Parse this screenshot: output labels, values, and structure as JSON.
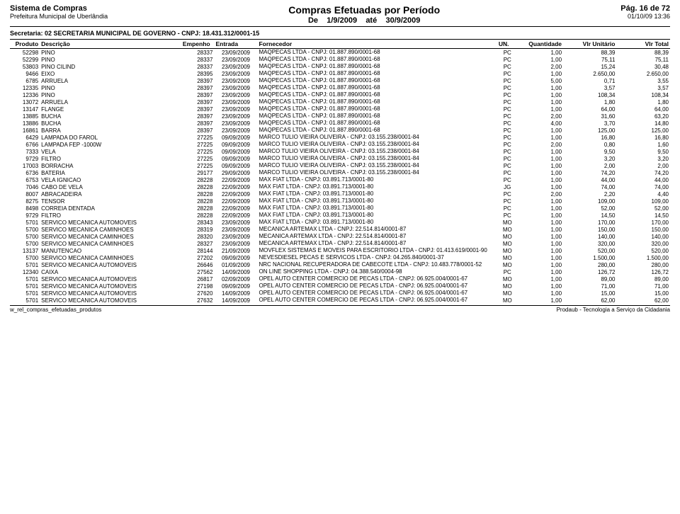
{
  "header": {
    "system_title": "Sistema de Compras",
    "system_sub": "Prefeitura Municipal de Uberlândia",
    "report_title": "Compras Efetuadas por Período",
    "report_sub_prefix": "De",
    "report_sub_date1": "1/9/2009",
    "report_sub_mid": "até",
    "report_sub_date2": "30/9/2009",
    "page_num": "Pág. 16 de 72",
    "timestamp": "01/10/09 13:36"
  },
  "secretaria": "Secretaria:  02  SECRETARIA MUNICIPAL DE GOVERNO   -   CNPJ: 18.431.312/0001-15",
  "columns": {
    "produto": "Produto",
    "descricao": "Descrição",
    "empenho": "Empenho",
    "entrada": "Entrada",
    "fornecedor": "Fornecedor",
    "un": "UN.",
    "qtd": "Quantidade",
    "unit": "Vlr Unitário",
    "total": "Vlr Total"
  },
  "rows": [
    {
      "produto": "52298",
      "descricao": "PINO",
      "empenho": "28337",
      "entrada": "23/09/2009",
      "fornecedor": "MAQPECAS LTDA  -  CNPJ: 01.887.890/0001-68",
      "un": "PC",
      "qtd": "1,00",
      "unit": "88,39",
      "total": "88,39"
    },
    {
      "produto": "52299",
      "descricao": "PINO",
      "empenho": "28337",
      "entrada": "23/09/2009",
      "fornecedor": "MAQPECAS LTDA  -  CNPJ: 01.887.890/0001-68",
      "un": "PC",
      "qtd": "1,00",
      "unit": "75,11",
      "total": "75,11"
    },
    {
      "produto": "53803",
      "descricao": "PINO CILIND",
      "empenho": "28337",
      "entrada": "23/09/2009",
      "fornecedor": "MAQPECAS LTDA  -  CNPJ: 01.887.890/0001-68",
      "un": "PC",
      "qtd": "2,00",
      "unit": "15,24",
      "total": "30,48"
    },
    {
      "produto": "9466",
      "descricao": "EIXO",
      "empenho": "28395",
      "entrada": "23/09/2009",
      "fornecedor": "MAQPECAS LTDA  -  CNPJ: 01.887.890/0001-68",
      "un": "PC",
      "qtd": "1,00",
      "unit": "2.650,00",
      "total": "2.650,00"
    },
    {
      "produto": "6785",
      "descricao": "ARRUELA",
      "empenho": "28397",
      "entrada": "23/09/2009",
      "fornecedor": "MAQPECAS LTDA  -  CNPJ: 01.887.890/0001-68",
      "un": "PC",
      "qtd": "5,00",
      "unit": "0,71",
      "total": "3,55"
    },
    {
      "produto": "12335",
      "descricao": "PINO",
      "empenho": "28397",
      "entrada": "23/09/2009",
      "fornecedor": "MAQPECAS LTDA  -  CNPJ: 01.887.890/0001-68",
      "un": "PC",
      "qtd": "1,00",
      "unit": "3,57",
      "total": "3,57"
    },
    {
      "produto": "12336",
      "descricao": "PINO",
      "empenho": "28397",
      "entrada": "23/09/2009",
      "fornecedor": "MAQPECAS LTDA  -  CNPJ: 01.887.890/0001-68",
      "un": "PC",
      "qtd": "1,00",
      "unit": "108,34",
      "total": "108,34"
    },
    {
      "produto": "13072",
      "descricao": "ARRUELA",
      "empenho": "28397",
      "entrada": "23/09/2009",
      "fornecedor": "MAQPECAS LTDA  -  CNPJ: 01.887.890/0001-68",
      "un": "PC",
      "qtd": "1,00",
      "unit": "1,80",
      "total": "1,80"
    },
    {
      "produto": "13147",
      "descricao": "FLANGE",
      "empenho": "28397",
      "entrada": "23/09/2009",
      "fornecedor": "MAQPECAS LTDA  -  CNPJ: 01.887.890/0001-68",
      "un": "PC",
      "qtd": "1,00",
      "unit": "64,00",
      "total": "64,00"
    },
    {
      "produto": "13885",
      "descricao": "BUCHA",
      "empenho": "28397",
      "entrada": "23/09/2009",
      "fornecedor": "MAQPECAS LTDA  -  CNPJ: 01.887.890/0001-68",
      "un": "PC",
      "qtd": "2,00",
      "unit": "31,60",
      "total": "63,20"
    },
    {
      "produto": "13886",
      "descricao": "BUCHA",
      "empenho": "28397",
      "entrada": "23/09/2009",
      "fornecedor": "MAQPECAS LTDA  -  CNPJ: 01.887.890/0001-68",
      "un": "PC",
      "qtd": "4,00",
      "unit": "3,70",
      "total": "14,80"
    },
    {
      "produto": "16861",
      "descricao": "BARRA",
      "empenho": "28397",
      "entrada": "23/09/2009",
      "fornecedor": "MAQPECAS LTDA  -  CNPJ: 01.887.890/0001-68",
      "un": "PC",
      "qtd": "1,00",
      "unit": "125,00",
      "total": "125,00"
    },
    {
      "produto": "6429",
      "descricao": "LAMPADA DO FAROL",
      "empenho": "27225",
      "entrada": "09/09/2009",
      "fornecedor": "MARCO TULIO VIEIRA OLIVEIRA  -  CNPJ: 03.155.238/0001-84",
      "un": "PC",
      "qtd": "1,00",
      "unit": "16,80",
      "total": "16,80"
    },
    {
      "produto": "6766",
      "descricao": "LAMPADA FEP -1000W",
      "empenho": "27225",
      "entrada": "09/09/2009",
      "fornecedor": "MARCO TULIO VIEIRA OLIVEIRA  -  CNPJ: 03.155.238/0001-84",
      "un": "PC",
      "qtd": "2,00",
      "unit": "0,80",
      "total": "1,60"
    },
    {
      "produto": "7333",
      "descricao": "VELA",
      "empenho": "27225",
      "entrada": "09/09/2009",
      "fornecedor": "MARCO TULIO VIEIRA OLIVEIRA  -  CNPJ: 03.155.238/0001-84",
      "un": "PC",
      "qtd": "1,00",
      "unit": "9,50",
      "total": "9,50"
    },
    {
      "produto": "9729",
      "descricao": "FILTRO",
      "empenho": "27225",
      "entrada": "09/09/2009",
      "fornecedor": "MARCO TULIO VIEIRA OLIVEIRA  -  CNPJ: 03.155.238/0001-84",
      "un": "PC",
      "qtd": "1,00",
      "unit": "3,20",
      "total": "3,20"
    },
    {
      "produto": "17003",
      "descricao": "BORRACHA",
      "empenho": "27225",
      "entrada": "09/09/2009",
      "fornecedor": "MARCO TULIO VIEIRA OLIVEIRA  -  CNPJ: 03.155.238/0001-84",
      "un": "PC",
      "qtd": "1,00",
      "unit": "2,00",
      "total": "2,00"
    },
    {
      "produto": "6736",
      "descricao": "BATERIA",
      "empenho": "29177",
      "entrada": "29/09/2009",
      "fornecedor": "MARCO TULIO VIEIRA OLIVEIRA  -  CNPJ: 03.155.238/0001-84",
      "un": "PC",
      "qtd": "1,00",
      "unit": "74,20",
      "total": "74,20"
    },
    {
      "produto": "6753",
      "descricao": "VELA IGNICAO",
      "empenho": "28228",
      "entrada": "22/09/2009",
      "fornecedor": "MAX FIAT LTDA  -  CNPJ: 03.891.713/0001-80",
      "un": "PC",
      "qtd": "1,00",
      "unit": "44,00",
      "total": "44,00"
    },
    {
      "produto": "7046",
      "descricao": "CABO DE VELA",
      "empenho": "28228",
      "entrada": "22/09/2009",
      "fornecedor": "MAX FIAT LTDA  -  CNPJ: 03.891.713/0001-80",
      "un": "JG",
      "qtd": "1,00",
      "unit": "74,00",
      "total": "74,00"
    },
    {
      "produto": "8007",
      "descricao": "ABRACADEIRA",
      "empenho": "28228",
      "entrada": "22/09/2009",
      "fornecedor": "MAX FIAT LTDA  -  CNPJ: 03.891.713/0001-80",
      "un": "PC",
      "qtd": "2,00",
      "unit": "2,20",
      "total": "4,40"
    },
    {
      "produto": "8275",
      "descricao": "TENSOR",
      "empenho": "28228",
      "entrada": "22/09/2009",
      "fornecedor": "MAX FIAT LTDA  -  CNPJ: 03.891.713/0001-80",
      "un": "PC",
      "qtd": "1,00",
      "unit": "109,00",
      "total": "109,00"
    },
    {
      "produto": "8498",
      "descricao": "CORREIA DENTADA",
      "empenho": "28228",
      "entrada": "22/09/2009",
      "fornecedor": "MAX FIAT LTDA  -  CNPJ: 03.891.713/0001-80",
      "un": "PC",
      "qtd": "1,00",
      "unit": "52,00",
      "total": "52,00"
    },
    {
      "produto": "9729",
      "descricao": "FILTRO",
      "empenho": "28228",
      "entrada": "22/09/2009",
      "fornecedor": "MAX FIAT LTDA  -  CNPJ: 03.891.713/0001-80",
      "un": "PC",
      "qtd": "1,00",
      "unit": "14,50",
      "total": "14,50"
    },
    {
      "produto": "5701",
      "descricao": "SERVICO MECANICA AUTOMOVEIS",
      "empenho": "28343",
      "entrada": "23/09/2009",
      "fornecedor": "MAX FIAT LTDA  -  CNPJ: 03.891.713/0001-80",
      "un": "MO",
      "qtd": "1,00",
      "unit": "170,00",
      "total": "170,00"
    },
    {
      "produto": "5700",
      "descricao": "SERVICO MECANICA CAMINHOES",
      "empenho": "28319",
      "entrada": "23/09/2009",
      "fornecedor": "MECANICA ARTEMAX LTDA  -  CNPJ: 22.514.814/0001-87",
      "un": "MO",
      "qtd": "1,00",
      "unit": "150,00",
      "total": "150,00"
    },
    {
      "produto": "5700",
      "descricao": "SERVICO MECANICA CAMINHOES",
      "empenho": "28320",
      "entrada": "23/09/2009",
      "fornecedor": "MECANICA ARTEMAX LTDA  -  CNPJ: 22.514.814/0001-87",
      "un": "MO",
      "qtd": "1,00",
      "unit": "140,00",
      "total": "140,00"
    },
    {
      "produto": "5700",
      "descricao": "SERVICO MECANICA CAMINHOES",
      "empenho": "28327",
      "entrada": "23/09/2009",
      "fornecedor": "MECANICA ARTEMAX LTDA  -  CNPJ: 22.514.814/0001-87",
      "un": "MO",
      "qtd": "1,00",
      "unit": "320,00",
      "total": "320,00"
    },
    {
      "produto": "13137",
      "descricao": "MANUTENCAO",
      "empenho": "28144",
      "entrada": "21/09/2009",
      "fornecedor": "MOVFLEX SISTEMAS E MOVEIS PARA ESCRITORIO LTDA  -  CNPJ: 01.413.619/0001-90",
      "un": "MO",
      "qtd": "1,00",
      "unit": "520,00",
      "total": "520,00"
    },
    {
      "produto": "5700",
      "descricao": "SERVICO MECANICA CAMINHOES",
      "empenho": "27202",
      "entrada": "09/09/2009",
      "fornecedor": "NEVESDIESEL PECAS E SERVICOS LTDA  -  CNPJ: 04.265.840/0001-37",
      "un": "MO",
      "qtd": "1,00",
      "unit": "1.500,00",
      "total": "1.500,00"
    },
    {
      "produto": "5701",
      "descricao": "SERVICO MECANICA AUTOMOVEIS",
      "empenho": "26646",
      "entrada": "01/09/2009",
      "fornecedor": "NRC NACIONAL RECUPERADORA DE CABECOTE LTDA  -  CNPJ: 10.483.778/0001-52",
      "un": "MO",
      "qtd": "1,00",
      "unit": "280,00",
      "total": "280,00"
    },
    {
      "produto": "12340",
      "descricao": "CAIXA",
      "empenho": "27562",
      "entrada": "14/09/2009",
      "fornecedor": "ON LINE SHOPPING LTDA  -  CNPJ: 04.388.540/0004-98",
      "un": "PC",
      "qtd": "1,00",
      "unit": "126,72",
      "total": "126,72"
    },
    {
      "produto": "5701",
      "descricao": "SERVICO MECANICA AUTOMOVEIS",
      "empenho": "26817",
      "entrada": "02/09/2009",
      "fornecedor": "OPEL AUTO CENTER COMERCIO DE PECAS LTDA  -  CNPJ: 06.925.004/0001-67",
      "un": "MO",
      "qtd": "1,00",
      "unit": "89,00",
      "total": "89,00"
    },
    {
      "produto": "5701",
      "descricao": "SERVICO MECANICA AUTOMOVEIS",
      "empenho": "27198",
      "entrada": "09/09/2009",
      "fornecedor": "OPEL AUTO CENTER COMERCIO DE PECAS LTDA  -  CNPJ: 06.925.004/0001-67",
      "un": "MO",
      "qtd": "1,00",
      "unit": "71,00",
      "total": "71,00"
    },
    {
      "produto": "5701",
      "descricao": "SERVICO MECANICA AUTOMOVEIS",
      "empenho": "27620",
      "entrada": "14/09/2009",
      "fornecedor": "OPEL AUTO CENTER COMERCIO DE PECAS LTDA  -  CNPJ: 06.925.004/0001-67",
      "un": "MO",
      "qtd": "1,00",
      "unit": "15,00",
      "total": "15,00"
    },
    {
      "produto": "5701",
      "descricao": "SERVICO MECANICA AUTOMOVEIS",
      "empenho": "27632",
      "entrada": "14/09/2009",
      "fornecedor": "OPEL AUTO CENTER COMERCIO DE PECAS LTDA  -  CNPJ: 06.925.004/0001-67",
      "un": "MO",
      "qtd": "1,00",
      "unit": "62,00",
      "total": "62,00"
    }
  ],
  "footer": {
    "left": "w_rel_compras_efetuadas_produtos",
    "right": "Prodaub - Tecnologia a Serviço da Cidadania"
  }
}
